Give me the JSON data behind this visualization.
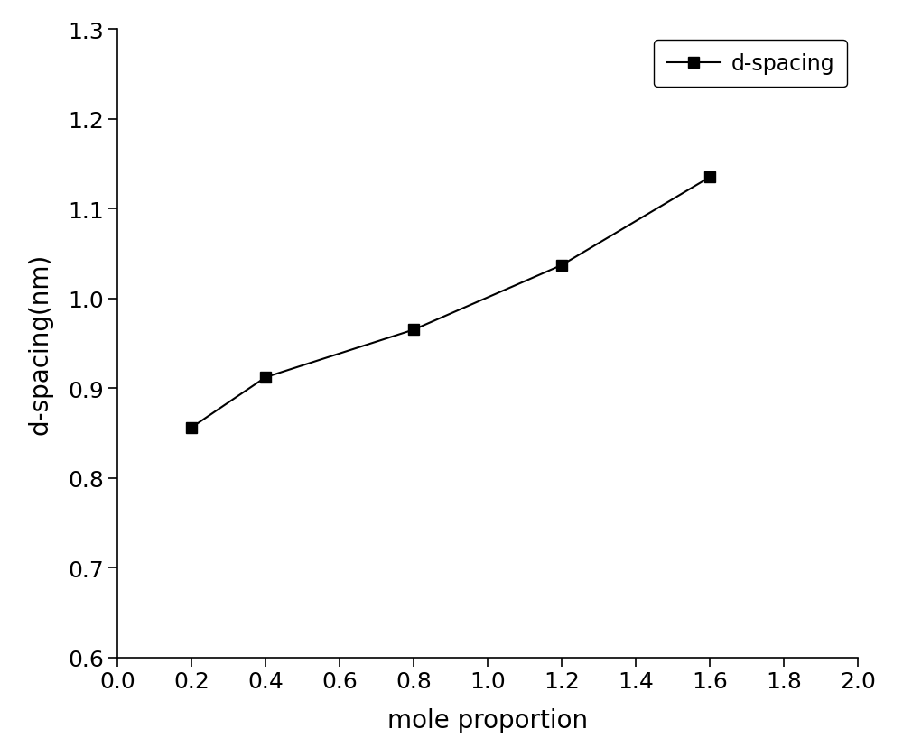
{
  "x": [
    0.2,
    0.4,
    0.8,
    1.2,
    1.6
  ],
  "y": [
    0.856,
    0.912,
    0.965,
    1.037,
    1.135
  ],
  "xlabel": "mole proportion",
  "ylabel": "d-spacing(nm)",
  "legend_label": "d-spacing",
  "xlim": [
    0.0,
    2.0
  ],
  "ylim": [
    0.6,
    1.3
  ],
  "xticks": [
    0.0,
    0.2,
    0.4,
    0.6,
    0.8,
    1.0,
    1.2,
    1.4,
    1.6,
    1.8,
    2.0
  ],
  "yticks": [
    0.6,
    0.7,
    0.8,
    0.9,
    1.0,
    1.1,
    1.2,
    1.3
  ],
  "line_color": "#000000",
  "marker": "s",
  "marker_size": 9,
  "marker_color": "#000000",
  "line_width": 1.5,
  "axis_label_fontsize": 20,
  "tick_label_fontsize": 18,
  "legend_fontsize": 17,
  "background_color": "#ffffff"
}
